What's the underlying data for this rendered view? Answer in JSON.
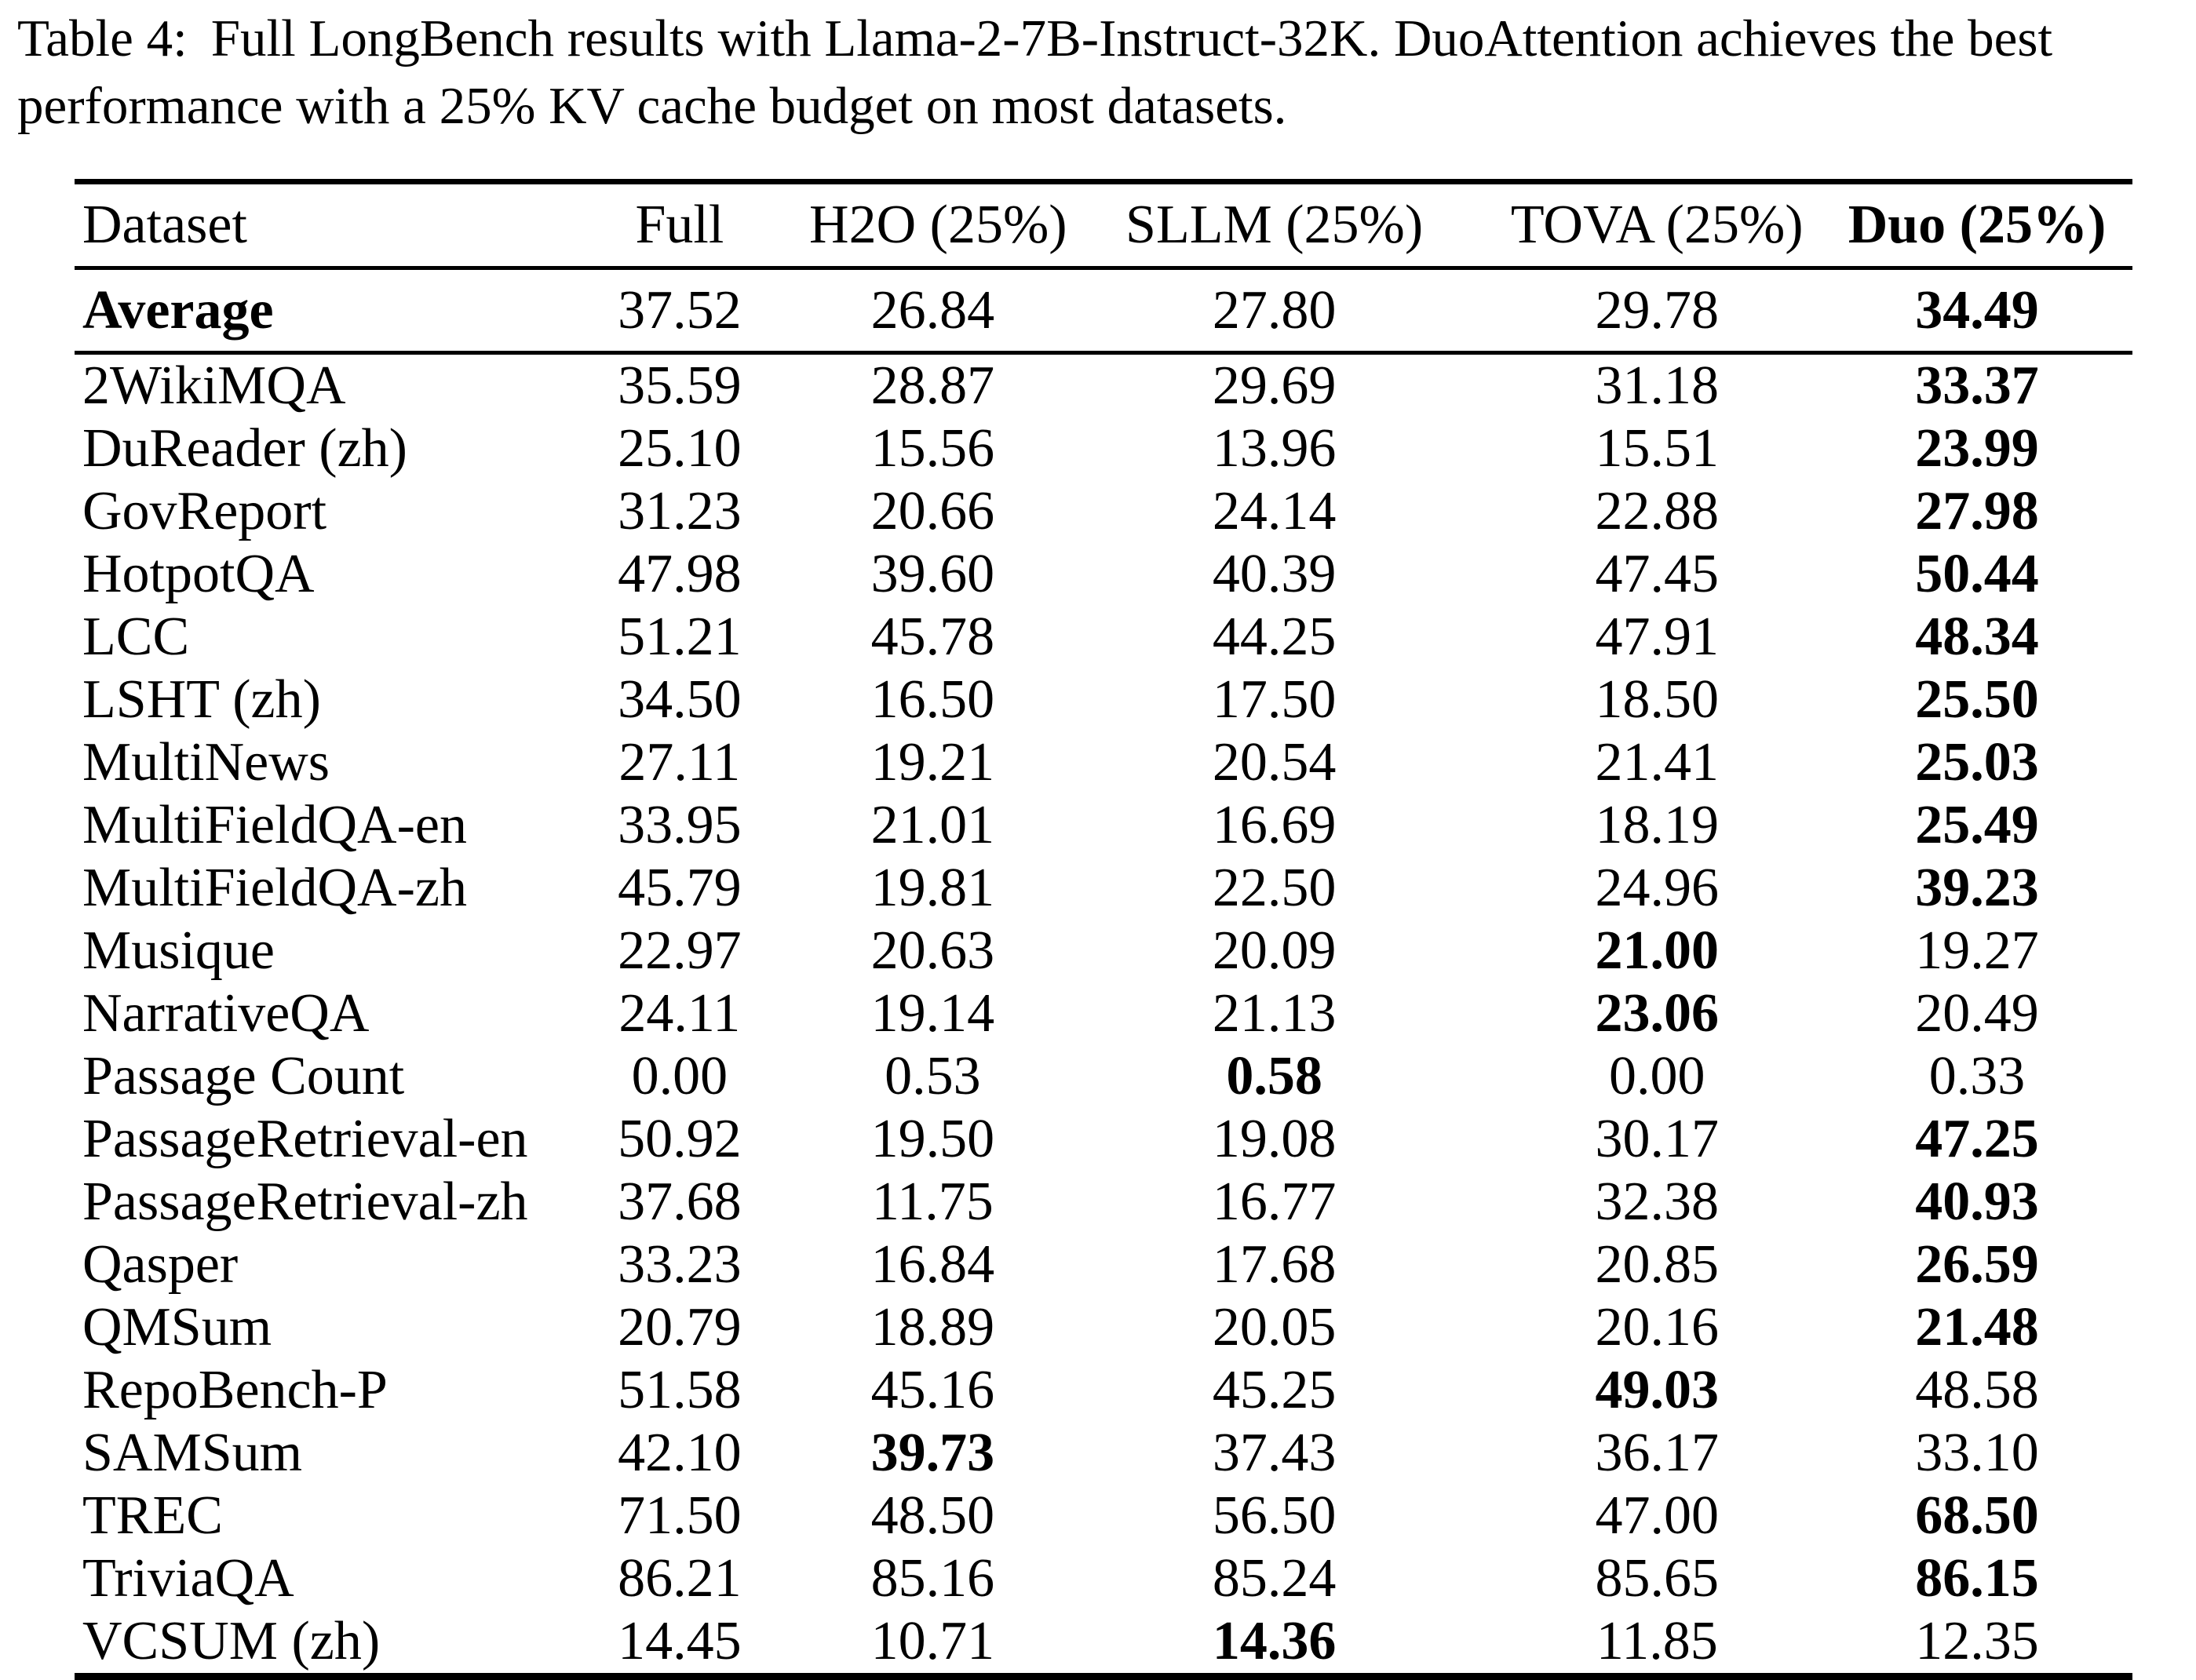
{
  "caption": {
    "label": "Table 4:",
    "line1": "Full LongBench results with Llama-2-7B-Instruct-32K. DuoAttention achieves the best",
    "line2": "performance with a 25% KV cache budget on most datasets."
  },
  "colors": {
    "text": "#000000",
    "background": "#ffffff",
    "rule": "#000000"
  },
  "table": {
    "columns": [
      "Dataset",
      "Full",
      "H2O (25%)",
      "SLLM (25%)",
      "TOVA (25%)",
      "Duo (25%)"
    ],
    "average_row": {
      "label": "Average",
      "values": [
        "37.52",
        "26.84",
        "27.80",
        "29.78",
        "34.49"
      ],
      "bold_value_index": 4
    },
    "rows": [
      {
        "label": "2WikiMQA",
        "values": [
          "35.59",
          "28.87",
          "29.69",
          "31.18",
          "33.37"
        ],
        "bold_value_index": 4
      },
      {
        "label": "DuReader (zh)",
        "values": [
          "25.10",
          "15.56",
          "13.96",
          "15.51",
          "23.99"
        ],
        "bold_value_index": 4
      },
      {
        "label": "GovReport",
        "values": [
          "31.23",
          "20.66",
          "24.14",
          "22.88",
          "27.98"
        ],
        "bold_value_index": 4
      },
      {
        "label": "HotpotQA",
        "values": [
          "47.98",
          "39.60",
          "40.39",
          "47.45",
          "50.44"
        ],
        "bold_value_index": 4
      },
      {
        "label": "LCC",
        "values": [
          "51.21",
          "45.78",
          "44.25",
          "47.91",
          "48.34"
        ],
        "bold_value_index": 4
      },
      {
        "label": "LSHT (zh)",
        "values": [
          "34.50",
          "16.50",
          "17.50",
          "18.50",
          "25.50"
        ],
        "bold_value_index": 4
      },
      {
        "label": "MultiNews",
        "values": [
          "27.11",
          "19.21",
          "20.54",
          "21.41",
          "25.03"
        ],
        "bold_value_index": 4
      },
      {
        "label": "MultiFieldQA-en",
        "values": [
          "33.95",
          "21.01",
          "16.69",
          "18.19",
          "25.49"
        ],
        "bold_value_index": 4
      },
      {
        "label": "MultiFieldQA-zh",
        "values": [
          "45.79",
          "19.81",
          "22.50",
          "24.96",
          "39.23"
        ],
        "bold_value_index": 4
      },
      {
        "label": "Musique",
        "values": [
          "22.97",
          "20.63",
          "20.09",
          "21.00",
          "19.27"
        ],
        "bold_value_index": 3
      },
      {
        "label": "NarrativeQA",
        "values": [
          "24.11",
          "19.14",
          "21.13",
          "23.06",
          "20.49"
        ],
        "bold_value_index": 3
      },
      {
        "label": "Passage Count",
        "values": [
          "0.00",
          "0.53",
          "0.58",
          "0.00",
          "0.33"
        ],
        "bold_value_index": 2
      },
      {
        "label": "PassageRetrieval-en",
        "values": [
          "50.92",
          "19.50",
          "19.08",
          "30.17",
          "47.25"
        ],
        "bold_value_index": 4
      },
      {
        "label": "PassageRetrieval-zh",
        "values": [
          "37.68",
          "11.75",
          "16.77",
          "32.38",
          "40.93"
        ],
        "bold_value_index": 4
      },
      {
        "label": "Qasper",
        "values": [
          "33.23",
          "16.84",
          "17.68",
          "20.85",
          "26.59"
        ],
        "bold_value_index": 4
      },
      {
        "label": "QMSum",
        "values": [
          "20.79",
          "18.89",
          "20.05",
          "20.16",
          "21.48"
        ],
        "bold_value_index": 4
      },
      {
        "label": "RepoBench-P",
        "values": [
          "51.58",
          "45.16",
          "45.25",
          "49.03",
          "48.58"
        ],
        "bold_value_index": 3
      },
      {
        "label": "SAMSum",
        "values": [
          "42.10",
          "39.73",
          "37.43",
          "36.17",
          "33.10"
        ],
        "bold_value_index": 1
      },
      {
        "label": "TREC",
        "values": [
          "71.50",
          "48.50",
          "56.50",
          "47.00",
          "68.50"
        ],
        "bold_value_index": 4
      },
      {
        "label": "TriviaQA",
        "values": [
          "86.21",
          "85.16",
          "85.24",
          "85.65",
          "86.15"
        ],
        "bold_value_index": 4
      },
      {
        "label": "VCSUM (zh)",
        "values": [
          "14.45",
          "10.71",
          "14.36",
          "11.85",
          "12.35"
        ],
        "bold_value_index": 2
      }
    ]
  }
}
